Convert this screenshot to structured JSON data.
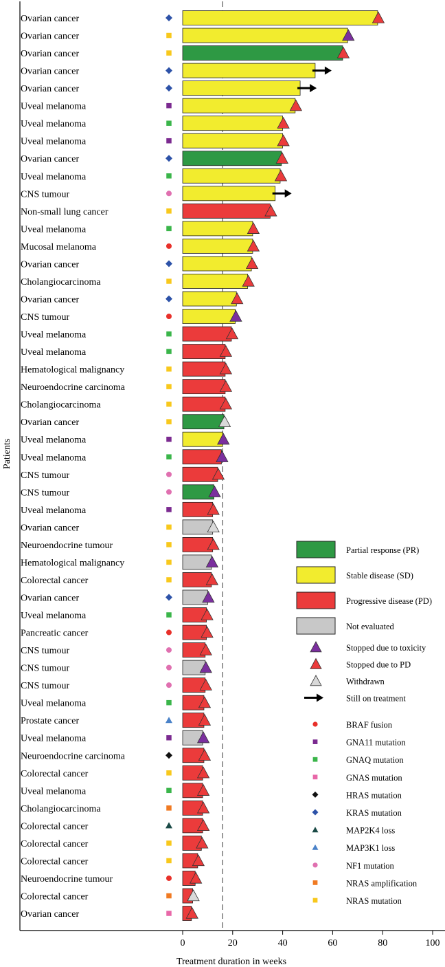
{
  "chart_data": {
    "type": "bar",
    "orientation": "horizontal",
    "title": "",
    "xlabel": "Treatment duration in weeks",
    "ylabel": "Patients",
    "xlim": [
      0,
      100
    ],
    "x_ticks": [
      0,
      20,
      40,
      60,
      80,
      100
    ],
    "reference_line_x": 16,
    "colors": {
      "PR": "#2e9944",
      "SD": "#f2ec2e",
      "PD": "#eb3b3b",
      "NE": "#c8c8c8",
      "toxicity": "#7b2f9e",
      "pd_stop": "#eb3b3b",
      "withdrawn": "#d9d9d9",
      "arrow": "#000000"
    },
    "legend": {
      "position": "right",
      "responses": [
        {
          "key": "PR",
          "label": "Partial response (PR)"
        },
        {
          "key": "SD",
          "label": "Stable disease (SD)"
        },
        {
          "key": "PD",
          "label": "Progressive disease (PD)"
        },
        {
          "key": "NE",
          "label": "Not evaluated"
        }
      ],
      "endpoints": [
        {
          "key": "toxicity",
          "label": "Stopped due to toxicity"
        },
        {
          "key": "pd",
          "label": "Stopped due to PD"
        },
        {
          "key": "withdrawn",
          "label": "Withdrawn"
        },
        {
          "key": "ongoing",
          "label": "Still on treatment"
        }
      ],
      "mutations": [
        {
          "key": "BRAF",
          "label": "BRAF fusion",
          "shape": "circle",
          "color": "#e8302a"
        },
        {
          "key": "GNA11",
          "label": "GNA11 mutation",
          "shape": "square",
          "color": "#7b2a90"
        },
        {
          "key": "GNAQ",
          "label": "GNAQ mutation",
          "shape": "square",
          "color": "#3ab54a"
        },
        {
          "key": "GNAS",
          "label": "GNAS mutation",
          "shape": "square",
          "color": "#e868a8"
        },
        {
          "key": "HRAS",
          "label": "HRAS mutation",
          "shape": "diamond",
          "color": "#111111"
        },
        {
          "key": "KRAS",
          "label": "KRAS mutation",
          "shape": "diamond",
          "color": "#2d52a8"
        },
        {
          "key": "MAP2K4",
          "label": "MAP2K4 loss",
          "shape": "triangle",
          "color": "#1a4a46"
        },
        {
          "key": "MAP3K1",
          "label": "MAP3K1 loss",
          "shape": "triangle",
          "color": "#4a82c8"
        },
        {
          "key": "NF1",
          "label": "NF1 mutation",
          "shape": "circle",
          "color": "#e070b0"
        },
        {
          "key": "NRASamp",
          "label": "NRAS amplification",
          "shape": "square",
          "color": "#f07a22"
        },
        {
          "key": "NRAS",
          "label": "NRAS mutation",
          "shape": "square",
          "color": "#f8c81c"
        }
      ]
    },
    "patients": [
      {
        "label": "Ovarian cancer",
        "mutation": "KRAS",
        "response": "SD",
        "weeks": 78,
        "end": "pd"
      },
      {
        "label": "Ovarian cancer",
        "mutation": "NRAS",
        "response": "SD",
        "weeks": 66,
        "end": "toxicity"
      },
      {
        "label": "Ovarian cancer",
        "mutation": "NRAS",
        "response": "PR",
        "weeks": 64,
        "end": "pd"
      },
      {
        "label": "Ovarian cancer",
        "mutation": "KRAS",
        "response": "SD",
        "weeks": 53,
        "end": "ongoing"
      },
      {
        "label": "Ovarian cancer",
        "mutation": "KRAS",
        "response": "SD",
        "weeks": 47,
        "end": "ongoing"
      },
      {
        "label": "Uveal melanoma",
        "mutation": "GNA11",
        "response": "SD",
        "weeks": 45,
        "end": "pd"
      },
      {
        "label": "Uveal melanoma",
        "mutation": "GNAQ",
        "response": "SD",
        "weeks": 40,
        "end": "pd"
      },
      {
        "label": "Uveal melanoma",
        "mutation": "GNA11",
        "response": "SD",
        "weeks": 40,
        "end": "pd"
      },
      {
        "label": "Ovarian cancer",
        "mutation": "KRAS",
        "response": "PR",
        "weeks": 39.5,
        "end": "pd"
      },
      {
        "label": "Uveal melanoma",
        "mutation": "GNAQ",
        "response": "SD",
        "weeks": 39,
        "end": "pd"
      },
      {
        "label": "CNS tumour",
        "mutation": "NF1",
        "response": "SD",
        "weeks": 37,
        "end": "ongoing"
      },
      {
        "label": "Non-small lung cancer",
        "mutation": "NRAS",
        "response": "PD",
        "weeks": 35,
        "end": "pd"
      },
      {
        "label": "Uveal melanoma",
        "mutation": "GNAQ",
        "response": "SD",
        "weeks": 28,
        "end": "pd"
      },
      {
        "label": "Mucosal melanoma",
        "mutation": "BRAF",
        "response": "SD",
        "weeks": 28,
        "end": "pd"
      },
      {
        "label": "Ovarian cancer",
        "mutation": "KRAS",
        "response": "SD",
        "weeks": 27.5,
        "end": "pd"
      },
      {
        "label": "Cholangiocarcinoma",
        "mutation": "NRAS",
        "response": "SD",
        "weeks": 26,
        "end": "pd"
      },
      {
        "label": "Ovarian cancer",
        "mutation": "KRAS",
        "response": "SD",
        "weeks": 21.5,
        "end": "pd"
      },
      {
        "label": "CNS tumour",
        "mutation": "BRAF",
        "response": "SD",
        "weeks": 21,
        "end": "toxicity"
      },
      {
        "label": "Uveal melanoma",
        "mutation": "GNAQ",
        "response": "PD",
        "weeks": 19.5,
        "end": "pd"
      },
      {
        "label": "Uveal melanoma",
        "mutation": "GNAQ",
        "response": "PD",
        "weeks": 17,
        "end": "pd"
      },
      {
        "label": "Hematological malignancy",
        "mutation": "NRAS",
        "response": "PD",
        "weeks": 17,
        "end": "pd"
      },
      {
        "label": "Neuroendocrine carcinoma",
        "mutation": "NRAS",
        "response": "PD",
        "weeks": 17,
        "end": "pd"
      },
      {
        "label": "Cholangiocarcinoma",
        "mutation": "NRAS",
        "response": "PD",
        "weeks": 17,
        "end": "pd"
      },
      {
        "label": "Ovarian cancer",
        "mutation": "NRAS",
        "response": "PR",
        "weeks": 16.5,
        "end": "withdrawn"
      },
      {
        "label": "Uveal melanoma",
        "mutation": "GNA11",
        "response": "SD",
        "weeks": 16,
        "end": "toxicity"
      },
      {
        "label": "Uveal melanoma",
        "mutation": "GNAQ",
        "response": "PD",
        "weeks": 15.5,
        "end": "toxicity"
      },
      {
        "label": "CNS tumour",
        "mutation": "NF1",
        "response": "PD",
        "weeks": 14,
        "end": "pd"
      },
      {
        "label": "CNS tumour",
        "mutation": "NF1",
        "response": "PR",
        "weeks": 12.5,
        "end": "toxicity"
      },
      {
        "label": "Uveal melanoma",
        "mutation": "GNA11",
        "response": "PD",
        "weeks": 12,
        "end": "pd"
      },
      {
        "label": "Ovarian cancer",
        "mutation": "NRAS",
        "response": "NE",
        "weeks": 12,
        "end": "withdrawn"
      },
      {
        "label": "Neuroendocrine tumour",
        "mutation": "NRAS",
        "response": "PD",
        "weeks": 12,
        "end": "pd"
      },
      {
        "label": "Hematological malignancy",
        "mutation": "NRAS",
        "response": "NE",
        "weeks": 11.5,
        "end": "toxicity"
      },
      {
        "label": "Colorectal cancer",
        "mutation": "NRAS",
        "response": "PD",
        "weeks": 11.5,
        "end": "pd"
      },
      {
        "label": "Ovarian cancer",
        "mutation": "KRAS",
        "response": "NE",
        "weeks": 10,
        "end": "toxicity"
      },
      {
        "label": "Uveal melanoma",
        "mutation": "GNAQ",
        "response": "PD",
        "weeks": 9.5,
        "end": "pd"
      },
      {
        "label": "Pancreatic cancer",
        "mutation": "BRAF",
        "response": "PD",
        "weeks": 9.5,
        "end": "pd"
      },
      {
        "label": "CNS tumour",
        "mutation": "NF1",
        "response": "PD",
        "weeks": 9,
        "end": "pd"
      },
      {
        "label": "CNS tumour",
        "mutation": "NF1",
        "response": "NE",
        "weeks": 9,
        "end": "toxicity"
      },
      {
        "label": "CNS tumour",
        "mutation": "NF1",
        "response": "PD",
        "weeks": 9,
        "end": "pd"
      },
      {
        "label": "Uveal melanoma",
        "mutation": "GNAQ",
        "response": "PD",
        "weeks": 8.5,
        "end": "pd"
      },
      {
        "label": "Prostate cancer",
        "mutation": "MAP3K1",
        "response": "PD",
        "weeks": 8.5,
        "end": "pd"
      },
      {
        "label": "Uveal melanoma",
        "mutation": "GNA11",
        "response": "NE",
        "weeks": 8,
        "end": "toxicity"
      },
      {
        "label": "Neuroendocrine carcinoma",
        "mutation": "HRAS",
        "response": "PD",
        "weeks": 8.5,
        "end": "pd"
      },
      {
        "label": "Colorectal cancer",
        "mutation": "NRAS",
        "response": "PD",
        "weeks": 8,
        "end": "pd"
      },
      {
        "label": "Uveal melanoma",
        "mutation": "GNAQ",
        "response": "PD",
        "weeks": 8,
        "end": "pd"
      },
      {
        "label": "Cholangiocarcinoma",
        "mutation": "NRASamp",
        "response": "PD",
        "weeks": 8,
        "end": "pd"
      },
      {
        "label": "Colorectal cancer",
        "mutation": "MAP2K4",
        "response": "PD",
        "weeks": 8,
        "end": "pd"
      },
      {
        "label": "Colorectal cancer",
        "mutation": "NRAS",
        "response": "PD",
        "weeks": 7.5,
        "end": "pd"
      },
      {
        "label": "Colorectal cancer",
        "mutation": "NRAS",
        "response": "PD",
        "weeks": 6,
        "end": "pd"
      },
      {
        "label": "Neuroendocrine tumour",
        "mutation": "BRAF",
        "response": "PD",
        "weeks": 5,
        "end": "pd"
      },
      {
        "label": "Colorectal cancer",
        "mutation": "NRASamp",
        "response": "PD",
        "weeks": 4,
        "end": "withdrawn"
      },
      {
        "label": "Ovarian cancer",
        "mutation": "GNAS",
        "response": "PD",
        "weeks": 3.5,
        "end": "pd"
      }
    ]
  }
}
